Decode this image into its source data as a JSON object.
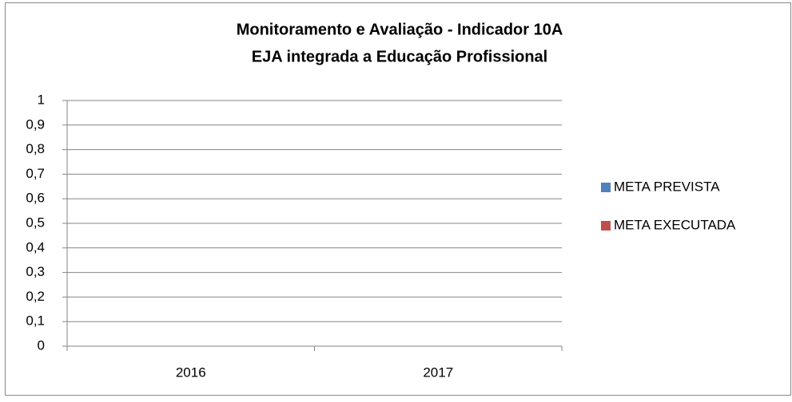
{
  "chart_data": {
    "type": "bar",
    "title": [
      "Monitoramento e Avaliação - Indicador 10A",
      "EJA integrada a Educação Profissional"
    ],
    "categories": [
      "2016",
      "2017"
    ],
    "series": [
      {
        "name": "META PREVISTA",
        "color": "#4f81bd",
        "values": [
          0,
          0
        ]
      },
      {
        "name": "META EXECUTADA",
        "color": "#c0504d",
        "values": [
          0,
          0
        ]
      }
    ],
    "ylim": [
      0,
      1
    ],
    "yticks": [
      0,
      {
        "value": 0.1,
        "label": "0,1"
      },
      {
        "value": 0.2,
        "label": "0,2"
      },
      {
        "value": 0.3,
        "label": "0,3"
      },
      {
        "value": 0.4,
        "label": "0,4"
      },
      {
        "value": 0.5,
        "label": "0,5"
      },
      {
        "value": 0.6,
        "label": "0,6"
      },
      {
        "value": 0.7,
        "label": "0,7"
      },
      {
        "value": 0.8,
        "label": "0,8"
      },
      {
        "value": 0.9,
        "label": "0,9"
      },
      1
    ],
    "grid": true,
    "legend": "right"
  }
}
